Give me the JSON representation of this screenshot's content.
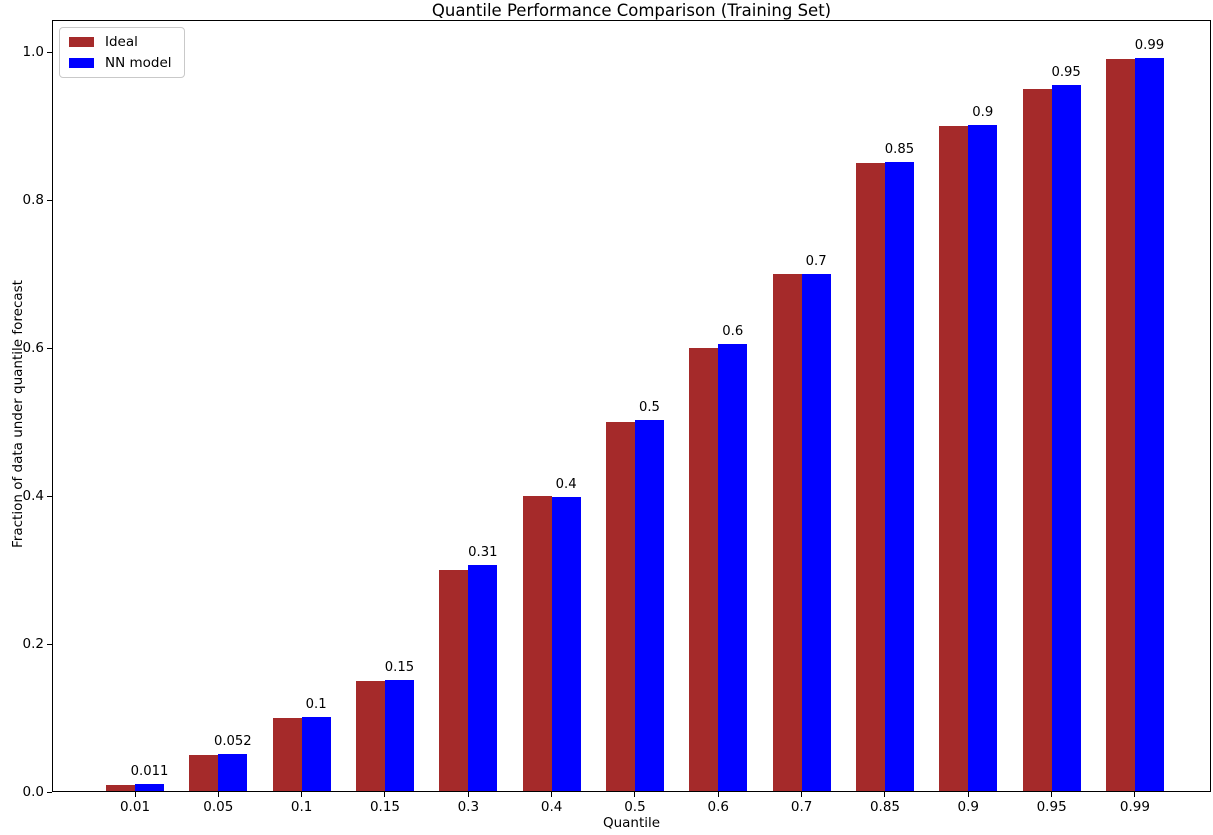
{
  "figure": {
    "title": "Quantile Performance Comparison (Training Set)",
    "xlabel": "Quantile",
    "ylabel": "Fraction of data under quantile forecast"
  },
  "chart_data": {
    "type": "bar",
    "title": "Quantile Performance Comparison (Training Set)",
    "xlabel": "Quantile",
    "ylabel": "Fraction of data under quantile forecast",
    "categories": [
      "0.01",
      "0.05",
      "0.1",
      "0.15",
      "0.3",
      "0.4",
      "0.5",
      "0.6",
      "0.7",
      "0.85",
      "0.9",
      "0.95",
      "0.99"
    ],
    "series": [
      {
        "name": "Ideal",
        "color": "#a52a2a",
        "values": [
          0.01,
          0.05,
          0.1,
          0.15,
          0.3,
          0.4,
          0.5,
          0.6,
          0.7,
          0.85,
          0.9,
          0.95,
          0.99
        ]
      },
      {
        "name": "NN model",
        "color": "#0000ff",
        "values": [
          0.011,
          0.052,
          0.102,
          0.152,
          0.307,
          0.398,
          0.503,
          0.605,
          0.7,
          0.851,
          0.902,
          0.955,
          0.992
        ]
      }
    ],
    "bar_labels": [
      "0.011",
      "0.052",
      "0.1",
      "0.15",
      "0.31",
      "0.4",
      "0.5",
      "0.6",
      "0.7",
      "0.85",
      "0.9",
      "0.95",
      "0.99"
    ],
    "yticks": [
      "0.0",
      "0.2",
      "0.4",
      "0.6",
      "0.8",
      "1.0"
    ],
    "ytick_values": [
      0.0,
      0.2,
      0.4,
      0.6,
      0.8,
      1.0
    ],
    "ylim": [
      0,
      1.043
    ],
    "grid": false,
    "legend_position": "upper-left",
    "background_color": "#ffffff",
    "spine_color": "#000000"
  }
}
